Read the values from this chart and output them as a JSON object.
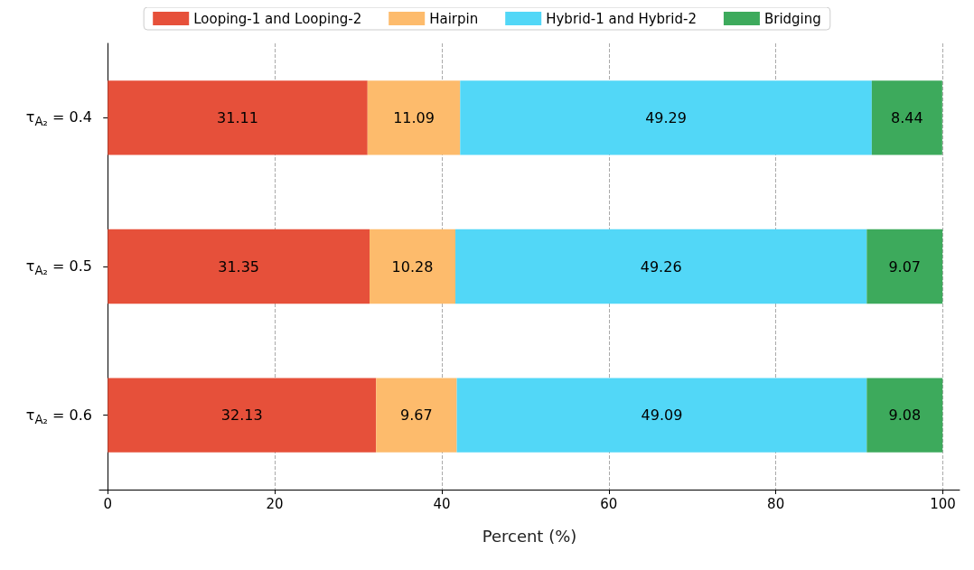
{
  "chart_data": {
    "type": "bar",
    "orientation": "horizontal",
    "stacked": true,
    "data_labels": true,
    "grid": "x",
    "legend": "top",
    "xlabel": "Percent (%)",
    "categories": [
      "τ$_{A₂}$ = 0.4",
      "τ$_{A₂}$ = 0.5",
      "τ$_{A₂}$ = 0.6"
    ],
    "xlim": [
      -1,
      102
    ],
    "xticks": [
      0,
      20,
      40,
      60,
      80,
      100
    ],
    "series": [
      {
        "name": "Looping-1 and Looping-2",
        "color": "#e6503a",
        "values": [
          31.11,
          31.35,
          32.13
        ]
      },
      {
        "name": "Hairpin",
        "color": "#fdbb6c",
        "values": [
          11.09,
          10.28,
          9.67
        ]
      },
      {
        "name": "Hybrid-1 and Hybrid-2",
        "color": "#52d7f7",
        "values": [
          49.29,
          49.26,
          49.09
        ]
      },
      {
        "name": "Bridging",
        "color": "#3daa5c",
        "values": [
          8.44,
          9.07,
          9.08
        ]
      }
    ]
  }
}
